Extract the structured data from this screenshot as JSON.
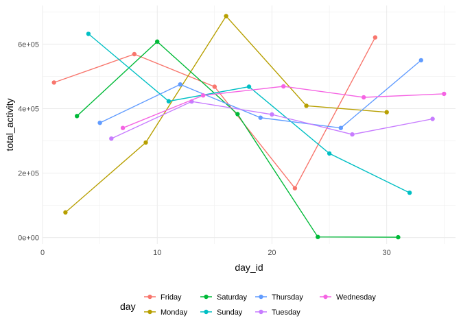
{
  "chart_data": {
    "type": "line",
    "xlabel": "day_id",
    "ylabel": "total_activity",
    "xlim": [
      0,
      36
    ],
    "ylim": [
      -20000,
      720000
    ],
    "x_ticks": [
      0,
      10,
      20,
      30
    ],
    "y_ticks": [
      0,
      200000,
      400000,
      600000
    ],
    "y_tick_labels": [
      "0e+00",
      "2e+05",
      "4e+05",
      "6e+05"
    ],
    "grid": true,
    "legend": {
      "title": "day",
      "position": "bottom"
    },
    "series": [
      {
        "name": "Friday",
        "color": "#F8766D",
        "points": [
          [
            1,
            481000
          ],
          [
            8,
            569000
          ],
          [
            15,
            468000
          ],
          [
            22,
            153000
          ],
          [
            29,
            621000
          ]
        ]
      },
      {
        "name": "Monday",
        "color": "#B79F00",
        "points": [
          [
            2,
            78000
          ],
          [
            9,
            295000
          ],
          [
            16,
            687000
          ],
          [
            23,
            409000
          ],
          [
            30,
            389000
          ]
        ]
      },
      {
        "name": "Saturday",
        "color": "#00BA38",
        "points": [
          [
            3,
            377000
          ],
          [
            10,
            608000
          ],
          [
            17,
            383000
          ],
          [
            24,
            2000
          ],
          [
            31,
            1000
          ]
        ]
      },
      {
        "name": "Sunday",
        "color": "#00BFC4",
        "points": [
          [
            4,
            632000
          ],
          [
            11,
            423000
          ],
          [
            18,
            468000
          ],
          [
            25,
            261000
          ],
          [
            32,
            139000
          ]
        ]
      },
      {
        "name": "Thursday",
        "color": "#619CFF",
        "points": [
          [
            5,
            356000
          ],
          [
            12,
            475000
          ],
          [
            19,
            372000
          ],
          [
            26,
            340000
          ],
          [
            33,
            550000
          ]
        ]
      },
      {
        "name": "Tuesday",
        "color": "#C77CFF",
        "points": [
          [
            6,
            307000
          ],
          [
            13,
            422000
          ],
          [
            20,
            382000
          ],
          [
            27,
            320000
          ],
          [
            34,
            368000
          ]
        ]
      },
      {
        "name": "Wednesday",
        "color": "#F564E3",
        "points": [
          [
            7,
            340000
          ],
          [
            14,
            441000
          ],
          [
            21,
            469000
          ],
          [
            28,
            435000
          ],
          [
            35,
            446000
          ]
        ]
      }
    ]
  }
}
